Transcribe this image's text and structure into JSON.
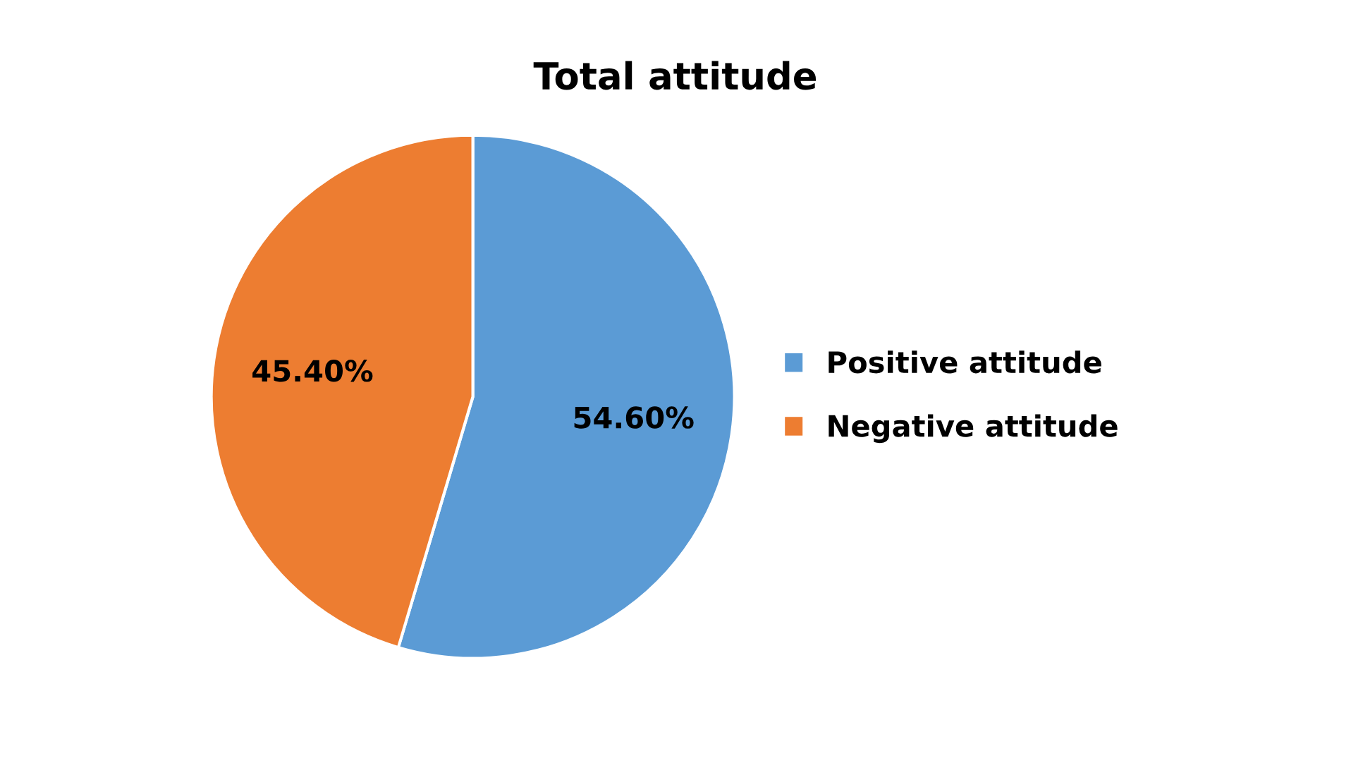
{
  "chart_data": {
    "type": "pie",
    "title": "Total attitude",
    "categories": [
      "Positive attitude",
      "Negative attitude"
    ],
    "values": [
      54.6,
      45.4
    ],
    "colors": [
      "#5b9bd5",
      "#ed7d31"
    ],
    "value_labels": [
      "54.60%",
      "45.40%"
    ],
    "legend": "right"
  }
}
